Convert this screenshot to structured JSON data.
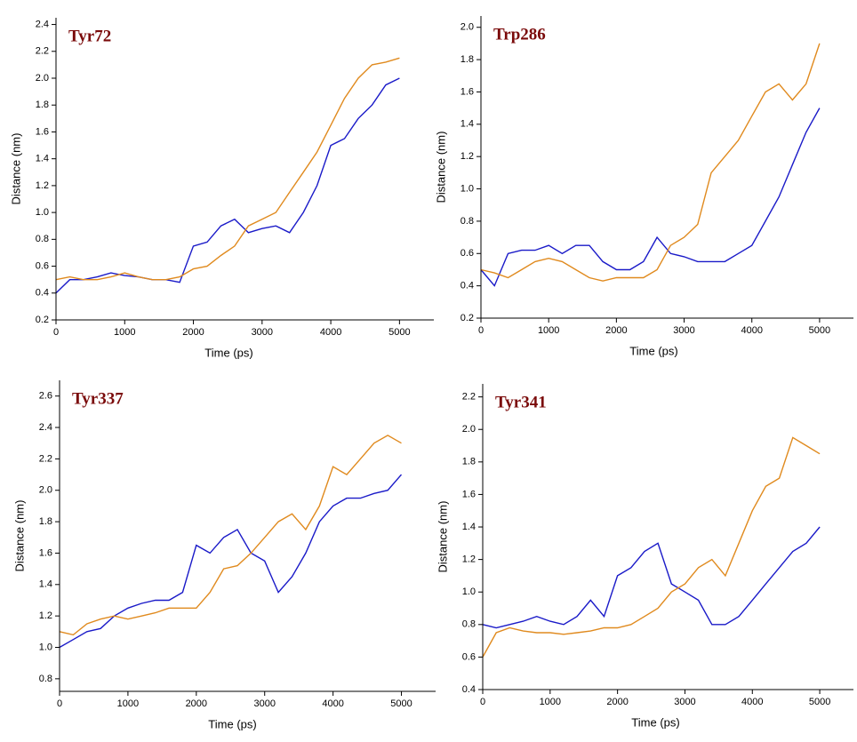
{
  "chart_data": [
    {
      "type": "line",
      "title": "Tyr72",
      "xlabel": "Time (ps)",
      "ylabel": "Distance (nm)",
      "x": [
        0,
        200,
        400,
        600,
        800,
        1000,
        1200,
        1400,
        1600,
        1800,
        2000,
        2200,
        2400,
        2600,
        2800,
        3000,
        3200,
        3400,
        3600,
        3800,
        4000,
        4200,
        4400,
        4600,
        4800,
        5000
      ],
      "series": [
        {
          "color": "#1a1ac8",
          "values": [
            0.4,
            0.5,
            0.5,
            0.52,
            0.55,
            0.53,
            0.52,
            0.5,
            0.5,
            0.48,
            0.75,
            0.78,
            0.9,
            0.95,
            0.85,
            0.88,
            0.9,
            0.85,
            1.0,
            1.2,
            1.5,
            1.55,
            1.7,
            1.8,
            1.95,
            2.0
          ]
        },
        {
          "color": "#e08a1e",
          "values": [
            0.5,
            0.52,
            0.5,
            0.5,
            0.52,
            0.55,
            0.52,
            0.5,
            0.5,
            0.52,
            0.58,
            0.6,
            0.68,
            0.75,
            0.9,
            0.95,
            1.0,
            1.15,
            1.3,
            1.45,
            1.65,
            1.85,
            2.0,
            2.1,
            2.12,
            2.15
          ]
        }
      ],
      "xlim": [
        0,
        5500
      ],
      "ylim": [
        0.2,
        2.45
      ],
      "xticks": [
        0,
        1000,
        2000,
        3000,
        4000,
        5000
      ],
      "yticks": [
        0.2,
        0.4,
        0.6,
        0.8,
        {
          "value": 1,
          "label": "1.0"
        },
        1.2,
        1.4,
        1.6,
        1.8,
        {
          "value": 2,
          "label": "2.0"
        },
        2.2,
        2.4
      ]
    },
    {
      "type": "line",
      "title": "Trp286",
      "xlabel": "Time (ps)",
      "ylabel": "Distance (nm)",
      "x": [
        0,
        200,
        400,
        600,
        800,
        1000,
        1200,
        1400,
        1600,
        1800,
        2000,
        2200,
        2400,
        2600,
        2800,
        3000,
        3200,
        3400,
        3600,
        3800,
        4000,
        4200,
        4400,
        4600,
        4800,
        5000
      ],
      "series": [
        {
          "color": "#1a1ac8",
          "values": [
            0.5,
            0.4,
            0.6,
            0.62,
            0.62,
            0.65,
            0.6,
            0.65,
            0.65,
            0.55,
            0.5,
            0.5,
            0.55,
            0.7,
            0.6,
            0.58,
            0.55,
            0.55,
            0.55,
            0.6,
            0.65,
            0.8,
            0.95,
            1.15,
            1.35,
            1.5
          ]
        },
        {
          "color": "#e08a1e",
          "values": [
            0.5,
            0.48,
            0.45,
            0.5,
            0.55,
            0.57,
            0.55,
            0.5,
            0.45,
            0.43,
            0.45,
            0.45,
            0.45,
            0.5,
            0.65,
            0.7,
            0.78,
            1.1,
            1.2,
            1.3,
            1.45,
            1.6,
            1.65,
            1.55,
            1.65,
            1.9
          ]
        }
      ],
      "xlim": [
        0,
        5500
      ],
      "ylim": [
        0.2,
        2.07
      ],
      "xticks": [
        0,
        1000,
        2000,
        3000,
        4000,
        5000
      ],
      "yticks": [
        0.2,
        0.4,
        0.6,
        0.8,
        {
          "value": 1,
          "label": "1.0"
        },
        1.2,
        1.4,
        1.6,
        1.8,
        {
          "value": 2,
          "label": "2.0"
        }
      ]
    },
    {
      "type": "line",
      "title": "Tyr337",
      "xlabel": "Time (ps)",
      "ylabel": "Distance (nm)",
      "x": [
        0,
        200,
        400,
        600,
        800,
        1000,
        1200,
        1400,
        1600,
        1800,
        2000,
        2200,
        2400,
        2600,
        2800,
        3000,
        3200,
        3400,
        3600,
        3800,
        4000,
        4200,
        4400,
        4600,
        4800,
        5000
      ],
      "series": [
        {
          "color": "#1a1ac8",
          "values": [
            1.0,
            1.05,
            1.1,
            1.12,
            1.2,
            1.25,
            1.28,
            1.3,
            1.3,
            1.35,
            1.65,
            1.6,
            1.7,
            1.75,
            1.6,
            1.55,
            1.35,
            1.45,
            1.6,
            1.8,
            1.9,
            1.95,
            1.95,
            1.98,
            2.0,
            2.1
          ]
        },
        {
          "color": "#e08a1e",
          "values": [
            1.1,
            1.08,
            1.15,
            1.18,
            1.2,
            1.18,
            1.2,
            1.22,
            1.25,
            1.25,
            1.25,
            1.35,
            1.5,
            1.52,
            1.6,
            1.7,
            1.8,
            1.85,
            1.75,
            1.9,
            2.15,
            2.1,
            2.2,
            2.3,
            2.35,
            2.3
          ]
        }
      ],
      "xlim": [
        0,
        5500
      ],
      "ylim": [
        0.72,
        2.7
      ],
      "xticks": [
        0,
        1000,
        2000,
        3000,
        4000,
        5000
      ],
      "yticks": [
        0.8,
        {
          "value": 1,
          "label": "1.0"
        },
        1.2,
        1.4,
        1.6,
        1.8,
        {
          "value": 2,
          "label": "2.0"
        },
        2.2,
        2.4,
        2.6
      ]
    },
    {
      "type": "line",
      "title": "Tyr341",
      "xlabel": "Time (ps)",
      "ylabel": "Distance (nm)",
      "x": [
        0,
        200,
        400,
        600,
        800,
        1000,
        1200,
        1400,
        1600,
        1800,
        2000,
        2200,
        2400,
        2600,
        2800,
        3000,
        3200,
        3400,
        3600,
        3800,
        4000,
        4200,
        4400,
        4600,
        4800,
        5000
      ],
      "series": [
        {
          "color": "#1a1ac8",
          "values": [
            0.8,
            0.78,
            0.8,
            0.82,
            0.85,
            0.82,
            0.8,
            0.85,
            0.95,
            0.85,
            1.1,
            1.15,
            1.25,
            1.3,
            1.05,
            1.0,
            0.95,
            0.8,
            0.8,
            0.85,
            0.95,
            1.05,
            1.15,
            1.25,
            1.3,
            1.4
          ]
        },
        {
          "color": "#e08a1e",
          "values": [
            0.6,
            0.75,
            0.78,
            0.76,
            0.75,
            0.75,
            0.74,
            0.75,
            0.76,
            0.78,
            0.78,
            0.8,
            0.85,
            0.9,
            1.0,
            1.05,
            1.15,
            1.2,
            1.1,
            1.3,
            1.5,
            1.65,
            1.7,
            1.95,
            1.9,
            1.85
          ]
        }
      ],
      "xlim": [
        0,
        5500
      ],
      "ylim": [
        0.4,
        2.28
      ],
      "xticks": [
        0,
        1000,
        2000,
        3000,
        4000,
        5000
      ],
      "yticks": [
        0.4,
        0.6,
        0.8,
        {
          "value": 1,
          "label": "1.0"
        },
        1.2,
        1.4,
        1.6,
        1.8,
        {
          "value": 2,
          "label": "2.0"
        },
        2.2
      ]
    }
  ]
}
